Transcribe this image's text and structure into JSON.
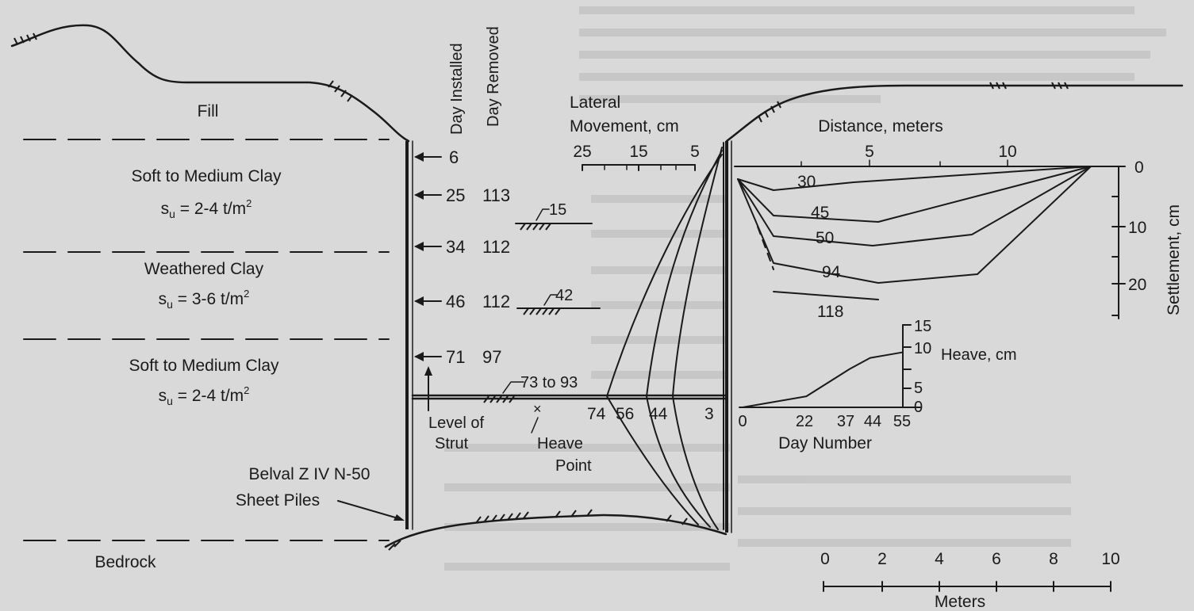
{
  "strata": {
    "fill": "Fill",
    "layer1_name": "Soft to Medium Clay",
    "layer1_su": "s",
    "layer1_su_sub": "u",
    "layer1_su_val": " = 2-4 t/m",
    "layer1_su_exp": "2",
    "layer2_name": "Weathered Clay",
    "layer2_su": "s",
    "layer2_su_sub": "u",
    "layer2_su_val": " = 3-6 t/m",
    "layer2_su_exp": "2",
    "layer3_name": "Soft to Medium Clay",
    "layer3_su": "s",
    "layer3_su_sub": "u",
    "layer3_su_val": " = 2-4 t/m",
    "layer3_su_exp": "2",
    "bedrock": "Bedrock"
  },
  "sheet_pile": {
    "type": "Belval  Z IV N-50",
    "label": "Sheet Piles"
  },
  "day_headers": {
    "installed": "Day Installed",
    "removed": "Day Removed"
  },
  "struts": [
    {
      "installed": "6",
      "removed": ""
    },
    {
      "installed": "25",
      "removed": "113"
    },
    {
      "installed": "34",
      "removed": "112"
    },
    {
      "installed": "46",
      "removed": "112"
    },
    {
      "installed": "71",
      "removed": "97"
    }
  ],
  "excavation_levels": {
    "level_a": "15",
    "level_b": "42",
    "level_c": "73 to 93"
  },
  "annotations": {
    "level_of_strut_1": "Level of",
    "level_of_strut_2": "Strut",
    "heave_point_mark": "×",
    "heave_point_1": "Heave",
    "heave_point_2": "Point"
  },
  "lateral": {
    "title1": "Lateral",
    "title2": "Movement, cm",
    "ticks": [
      "25",
      "15",
      "5"
    ],
    "curve_labels": [
      "74",
      "56",
      "44",
      "3"
    ]
  },
  "settlement": {
    "distance_label": "Distance, meters",
    "distance_ticks": [
      "5",
      "10"
    ],
    "axis_label": "Settlement, cm",
    "axis_ticks": [
      "0",
      "10",
      "20"
    ],
    "curve_labels": [
      "30",
      "45",
      "50",
      "94",
      "118"
    ]
  },
  "heave": {
    "axis_label": "Heave, cm",
    "y_ticks": [
      "15",
      "10",
      "5",
      "0"
    ],
    "x_ticks": [
      "0",
      "22",
      "37",
      "44",
      "55"
    ],
    "x_label": "Day Number",
    "series": {
      "x": [
        0,
        22,
        37,
        44,
        55
      ],
      "y": [
        0,
        2,
        7,
        9,
        10
      ]
    }
  },
  "scale_bar": {
    "ticks": [
      "0",
      "2",
      "4",
      "6",
      "8",
      "10"
    ],
    "label": "Meters"
  }
}
